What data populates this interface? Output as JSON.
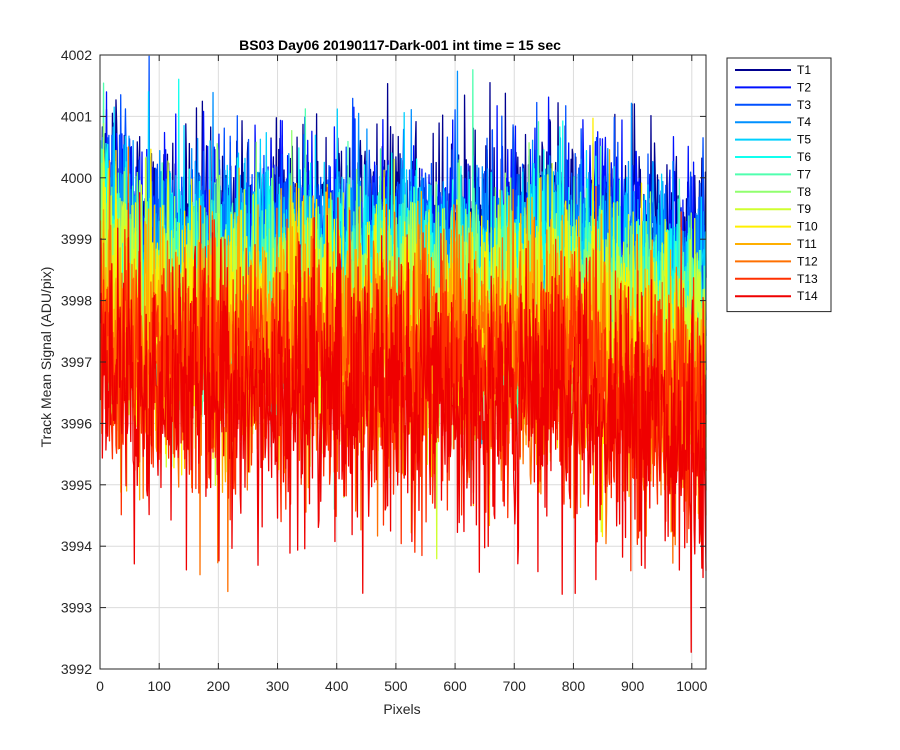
{
  "chart_data": {
    "type": "line",
    "title": "BS03 Day06 20190117-Dark-001 int time = 15 sec",
    "xlabel": "Pixels",
    "ylabel": "Track Mean Signal (ADU/pix)",
    "xlim": [
      0,
      1024
    ],
    "ylim": [
      3992,
      4002
    ],
    "xticks": [
      0,
      100,
      200,
      300,
      400,
      500,
      600,
      700,
      800,
      900,
      1000
    ],
    "yticks": [
      3992,
      3993,
      3994,
      3995,
      3996,
      3997,
      3998,
      3999,
      4000,
      4001,
      4002
    ],
    "grid": true,
    "legend_position": "outside-top-right",
    "x_points": "1 to 1024, every pixel",
    "series": [
      {
        "name": "T1",
        "color": "#00008f",
        "mean": 3999.3,
        "spread": 0.75,
        "start_mean": 4000.3,
        "end_mean": 3999.0
      },
      {
        "name": "T2",
        "color": "#0010ff",
        "mean": 3999.1,
        "spread": 0.75,
        "start_mean": 4000.2,
        "end_mean": 3998.8
      },
      {
        "name": "T3",
        "color": "#0050ff",
        "mean": 3998.9,
        "spread": 0.8,
        "start_mean": 4000.0,
        "end_mean": 3998.5
      },
      {
        "name": "T4",
        "color": "#0090ff",
        "mean": 3998.7,
        "spread": 0.8,
        "start_mean": 3999.8,
        "end_mean": 3998.3
      },
      {
        "name": "T5",
        "color": "#00d0ff",
        "mean": 3998.5,
        "spread": 0.85,
        "start_mean": 3999.6,
        "end_mean": 3998.0
      },
      {
        "name": "T6",
        "color": "#10ffef",
        "mean": 3998.3,
        "spread": 0.85,
        "start_mean": 3999.4,
        "end_mean": 3997.8
      },
      {
        "name": "T7",
        "color": "#50ffaf",
        "mean": 3998.1,
        "spread": 0.9,
        "start_mean": 3999.1,
        "end_mean": 3997.5
      },
      {
        "name": "T8",
        "color": "#90ff6f",
        "mean": 3997.9,
        "spread": 0.9,
        "start_mean": 3998.9,
        "end_mean": 3997.2
      },
      {
        "name": "T9",
        "color": "#cfff30",
        "mean": 3997.7,
        "spread": 0.95,
        "start_mean": 3998.6,
        "end_mean": 3996.9
      },
      {
        "name": "T10",
        "color": "#ffef00",
        "mean": 3997.5,
        "spread": 0.95,
        "start_mean": 3998.3,
        "end_mean": 3996.6
      },
      {
        "name": "T11",
        "color": "#ffaf00",
        "mean": 3997.3,
        "spread": 1.0,
        "start_mean": 3998.0,
        "end_mean": 3996.3
      },
      {
        "name": "T12",
        "color": "#ff7000",
        "mean": 3997.1,
        "spread": 1.0,
        "start_mean": 3997.7,
        "end_mean": 3996.0
      },
      {
        "name": "T13",
        "color": "#ff3000",
        "mean": 3996.8,
        "spread": 1.05,
        "start_mean": 3997.3,
        "end_mean": 3995.7
      },
      {
        "name": "T14",
        "color": "#ef0000",
        "mean": 3996.4,
        "spread": 1.1,
        "start_mean": 3996.8,
        "end_mean": 3995.4
      }
    ],
    "colors": {
      "background": "#ffffff",
      "grid": "#dcdcdc",
      "axis": "#262626"
    }
  }
}
